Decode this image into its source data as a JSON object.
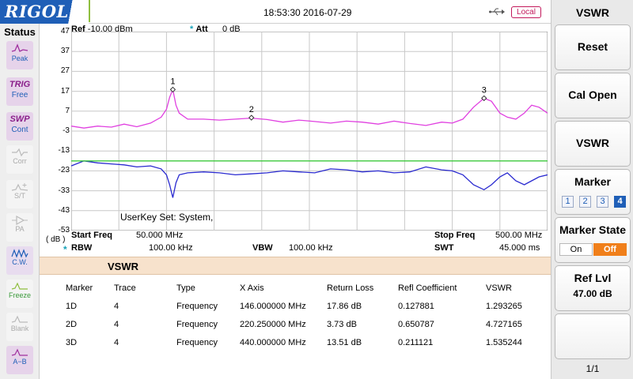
{
  "header": {
    "brand": "RIGOL",
    "datetime": "18:53:30 2016-07-29",
    "usb_icon": "usb-icon",
    "mode_badge": "Local"
  },
  "sidebar": {
    "title": "Status",
    "items": [
      {
        "icon": "waveform-icon",
        "label": "Peak",
        "state": "active"
      },
      {
        "glyph": "TRIG",
        "label": "Free",
        "state": "active"
      },
      {
        "glyph": "SWP",
        "label": "Cont",
        "state": "active"
      },
      {
        "icon": "waveform-icon",
        "label": "Corr",
        "state": "dim"
      },
      {
        "icon": "waveform-icon",
        "label": "S/T",
        "state": "dim"
      },
      {
        "icon": "waveform-icon",
        "label": "PA",
        "state": "dim"
      },
      {
        "icon": "waveform-icon",
        "label": "C.W.",
        "state": "on"
      },
      {
        "icon": "waveform-icon",
        "label": "Freeze",
        "state": "dim"
      },
      {
        "icon": "waveform-icon",
        "label": "Blank",
        "state": "dim"
      },
      {
        "icon": "waveform-icon",
        "label": "A−B",
        "state": "dim"
      }
    ]
  },
  "plot": {
    "ref_label": "Ref",
    "ref_value": "-10.00 dBm",
    "att_label": "Att",
    "att_value": "0 dB",
    "unit": "( dB )",
    "y_ticks": [
      "47",
      "37",
      "27",
      "17",
      "7",
      "-3",
      "-13",
      "-23",
      "-33",
      "-43",
      "-53"
    ],
    "userkey_text": "UserKey Set:   System,"
  },
  "freq_info": {
    "start_label": "Start Freq",
    "start_value": "50.000 MHz",
    "stop_label": "Stop Freq",
    "stop_value": "500.00 MHz",
    "rbw_label": "RBW",
    "rbw_value": "100.00 kHz",
    "vbw_label": "VBW",
    "vbw_value": "100.00 kHz",
    "swt_label": "SWT",
    "swt_value": "45.000 ms"
  },
  "chart_data": {
    "type": "line",
    "xlabel": "",
    "ylabel": "",
    "xlim": [
      50,
      500
    ],
    "ylim": [
      -53,
      47
    ],
    "grid": true,
    "series": [
      {
        "color": "#e040e0",
        "x": [
          50,
          62,
          75,
          88,
          100,
          112,
          125,
          135,
          140,
          143,
          146,
          149,
          152,
          160,
          175,
          190,
          205,
          220,
          235,
          250,
          265,
          280,
          295,
          310,
          325,
          340,
          355,
          370,
          385,
          400,
          410,
          420,
          430,
          440,
          447,
          455,
          462,
          470,
          478,
          485,
          492,
          500
        ],
        "y": [
          -0.5,
          -1.5,
          -0.5,
          -1,
          0.5,
          -0.8,
          1,
          4,
          8,
          14,
          17.9,
          10,
          6,
          3,
          3,
          2.5,
          3,
          3.5,
          2.8,
          1.5,
          2.5,
          1.8,
          1,
          2,
          1.5,
          0.5,
          2,
          0.8,
          -0.2,
          1.5,
          1,
          3,
          9,
          13.5,
          12,
          6,
          4,
          3,
          6,
          10,
          9,
          6
        ]
      },
      {
        "color": "#2a2ad0",
        "x": [
          50,
          62,
          75,
          88,
          100,
          112,
          125,
          135,
          140,
          143,
          146,
          149,
          152,
          160,
          175,
          190,
          205,
          220,
          235,
          250,
          265,
          280,
          295,
          310,
          325,
          340,
          355,
          370,
          385,
          400,
          410,
          420,
          430,
          440,
          447,
          455,
          462,
          470,
          478,
          485,
          492,
          500
        ],
        "y": [
          -20.5,
          -18,
          -19,
          -19.5,
          -20,
          -21,
          -20.5,
          -22,
          -25,
          -30,
          -36.5,
          -29,
          -25,
          -24,
          -23.5,
          -24,
          -25,
          -24.5,
          -24,
          -23,
          -23.5,
          -24,
          -22,
          -22.5,
          -23.5,
          -23,
          -24,
          -23.5,
          -21,
          -22.5,
          -23,
          -25,
          -30,
          -32.5,
          -30,
          -26,
          -24,
          -28,
          -30,
          -28,
          -26,
          -25
        ]
      },
      {
        "color": "#3cc83c",
        "x": [
          50,
          500
        ],
        "y": [
          -18,
          -18
        ]
      }
    ],
    "markers": [
      {
        "label": "1",
        "x": 146,
        "y": 17.86
      },
      {
        "label": "2",
        "x": 220.25,
        "y": 3.73
      },
      {
        "label": "3",
        "x": 440,
        "y": 13.51
      }
    ]
  },
  "table": {
    "title": "VSWR",
    "headers": [
      "Marker",
      "Trace",
      "Type",
      "X Axis",
      "Return Loss",
      "Refl Coefficient",
      "VSWR"
    ],
    "rows": [
      [
        "1D",
        "4",
        "Frequency",
        "146.000000 MHz",
        "17.86 dB",
        "0.127881",
        "1.293265"
      ],
      [
        "2D",
        "4",
        "Frequency",
        "220.250000 MHz",
        "3.73 dB",
        "0.650787",
        "4.727165"
      ],
      [
        "3D",
        "4",
        "Frequency",
        "440.000000 MHz",
        "13.51 dB",
        "0.211121",
        "1.535244"
      ]
    ]
  },
  "menu": {
    "title": "VSWR",
    "reset": "Reset",
    "cal_open": "Cal Open",
    "vswr": "VSWR",
    "marker_title": "Marker",
    "marker_options": [
      "1",
      "2",
      "3",
      "4"
    ],
    "marker_selected": "4",
    "marker_state_title": "Marker State",
    "state_on": "On",
    "state_off": "Off",
    "ref_lvl_title": "Ref Lvl",
    "ref_lvl_value": "47.00 dB",
    "page": "1/1"
  },
  "colors": {
    "brand_blue": "#1f5fb7",
    "trace_magenta": "#e040e0",
    "trace_blue": "#2a2ad0",
    "limit_green": "#3cc83c",
    "accent_orange": "#f07f1a",
    "table_bar": "#f7e2cc"
  }
}
